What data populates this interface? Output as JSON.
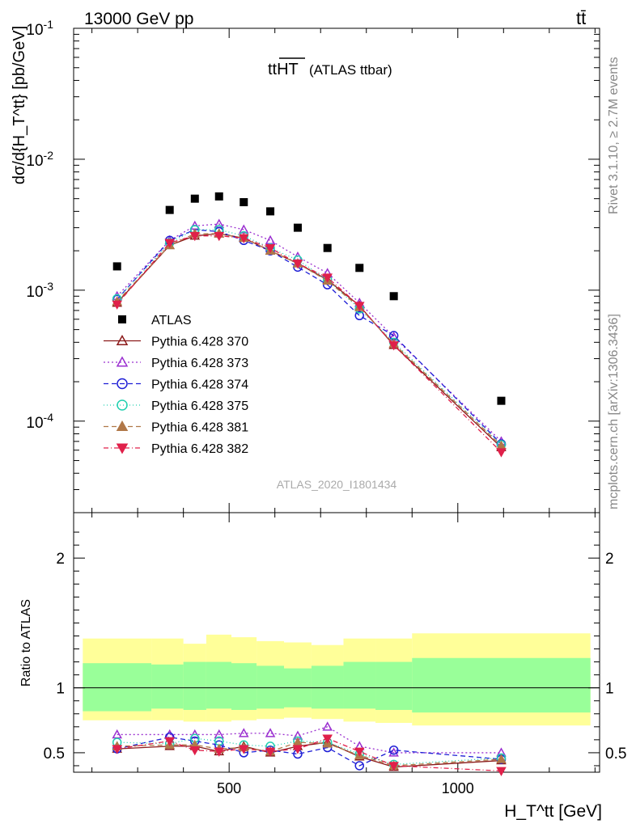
{
  "header": {
    "left": "13000 GeV pp",
    "right": "tt̄",
    "side_top": "Rivet 3.1.10, ≥ 2.7M events",
    "side_bottom": "mcplots.cern.ch [arXiv:1306.3436]"
  },
  "chart_data": {
    "type": "line",
    "title_main": "ttHT",
    "title_sub": "(ATLAS ttbar)",
    "watermark": "ATLAS_2020_I1801434",
    "ylabel_top": "dσ/d{H_T^tt} [pb/GeV]",
    "ylabel_bottom": "Ratio to ATLAS",
    "xlabel": "H_T^tt [GeV]",
    "x_range": [
      160,
      1310
    ],
    "y_top_range": [
      2e-05,
      0.1
    ],
    "y_top_scale": "log",
    "y_bottom_range": [
      0.35,
      2.35
    ],
    "x_ticks": [
      "500",
      "1000"
    ],
    "y_top_ticks": [
      "10^-1",
      "10^-2",
      "10^-3",
      "10^-4"
    ],
    "y_bottom_ticks": [
      "0.5",
      "1",
      "2"
    ],
    "x": [
      255,
      370,
      425,
      478,
      532,
      590,
      650,
      715,
      785,
      860,
      1095
    ],
    "x_edges": [
      180,
      330,
      400,
      450,
      505,
      560,
      620,
      680,
      750,
      820,
      900,
      1290
    ],
    "data": {
      "name": "ATLAS",
      "values": [
        0.00152,
        0.0041,
        0.005,
        0.0052,
        0.0047,
        0.004,
        0.003,
        0.0021,
        0.00148,
        0.0009,
        0.000143
      ],
      "band_inner": [
        [
          0.82,
          1.19
        ],
        [
          0.84,
          1.18
        ],
        [
          0.83,
          1.2
        ],
        [
          0.84,
          1.2
        ],
        [
          0.83,
          1.19
        ],
        [
          0.84,
          1.17
        ],
        [
          0.85,
          1.15
        ],
        [
          0.84,
          1.17
        ],
        [
          0.84,
          1.2
        ],
        [
          0.83,
          1.2
        ],
        [
          0.81,
          1.23
        ]
      ],
      "band_outer": [
        [
          0.75,
          1.38
        ],
        [
          0.75,
          1.38
        ],
        [
          0.74,
          1.34
        ],
        [
          0.74,
          1.41
        ],
        [
          0.75,
          1.39
        ],
        [
          0.76,
          1.36
        ],
        [
          0.77,
          1.35
        ],
        [
          0.76,
          1.33
        ],
        [
          0.74,
          1.38
        ],
        [
          0.73,
          1.38
        ],
        [
          0.71,
          1.42
        ]
      ]
    },
    "legend": [
      "ATLAS",
      "Pythia 6.428 370",
      "Pythia 6.428 373",
      "Pythia 6.428 374",
      "Pythia 6.428 375",
      "Pythia 6.428 381",
      "Pythia 6.428 382"
    ],
    "series": [
      {
        "name": "Pythia 6.428 370",
        "color": "#8b1a1a",
        "dash": "",
        "marker": "tri-up-open",
        "values": [
          0.0008,
          0.0022,
          0.0026,
          0.0027,
          0.0025,
          0.002,
          0.0016,
          0.0012,
          0.00076,
          0.00038,
          6.3e-05
        ],
        "ratio": [
          0.53,
          0.55,
          0.55,
          0.51,
          0.55,
          0.5,
          0.55,
          0.58,
          0.47,
          0.39,
          0.44
        ]
      },
      {
        "name": "Pythia 6.428 373",
        "color": "#9b30d0",
        "dash": "2,3",
        "marker": "tri-up-open",
        "values": [
          0.0009,
          0.0024,
          0.0031,
          0.0032,
          0.0029,
          0.0024,
          0.0018,
          0.00135,
          0.0008,
          0.00044,
          7e-05
        ],
        "ratio": [
          0.64,
          0.64,
          0.64,
          0.64,
          0.65,
          0.65,
          0.63,
          0.7,
          0.55,
          0.5,
          0.5
        ]
      },
      {
        "name": "Pythia 6.428 374",
        "color": "#1f1fd6",
        "dash": "6,4",
        "marker": "circle-open",
        "values": [
          0.00085,
          0.0024,
          0.0029,
          0.0028,
          0.0024,
          0.002,
          0.0015,
          0.0011,
          0.00064,
          0.00045,
          6.7e-05
        ],
        "ratio": [
          0.53,
          0.62,
          0.59,
          0.56,
          0.5,
          0.52,
          0.49,
          0.54,
          0.4,
          0.52,
          0.45
        ]
      },
      {
        "name": "Pythia 6.428 375",
        "color": "#20d0b0",
        "dash": "1,3",
        "marker": "circle-open",
        "values": [
          0.00086,
          0.0023,
          0.0029,
          0.0029,
          0.0026,
          0.0021,
          0.0017,
          0.0012,
          0.00072,
          0.0004,
          6.6e-05
        ],
        "ratio": [
          0.58,
          0.57,
          0.61,
          0.59,
          0.56,
          0.55,
          0.59,
          0.58,
          0.49,
          0.41,
          0.46
        ]
      },
      {
        "name": "Pythia 6.428 381",
        "color": "#b07848",
        "dash": "6,4",
        "marker": "tri-up-filled",
        "values": [
          0.00082,
          0.0022,
          0.0027,
          0.0027,
          0.0025,
          0.002,
          0.0016,
          0.00118,
          0.00074,
          0.00039,
          6.5e-05
        ],
        "ratio": [
          0.55,
          0.56,
          0.56,
          0.53,
          0.54,
          0.51,
          0.58,
          0.57,
          0.48,
          0.4,
          0.45
        ]
      },
      {
        "name": "Pythia 6.428 382",
        "color": "#e0204a",
        "dash": "6,3,1,3",
        "marker": "tri-down-filled",
        "values": [
          0.00078,
          0.0023,
          0.0026,
          0.0026,
          0.0025,
          0.0021,
          0.0016,
          0.00125,
          0.00076,
          0.00038,
          5.8e-05
        ],
        "ratio": [
          0.53,
          0.59,
          0.52,
          0.51,
          0.53,
          0.51,
          0.53,
          0.61,
          0.51,
          0.4,
          0.36
        ]
      }
    ]
  }
}
